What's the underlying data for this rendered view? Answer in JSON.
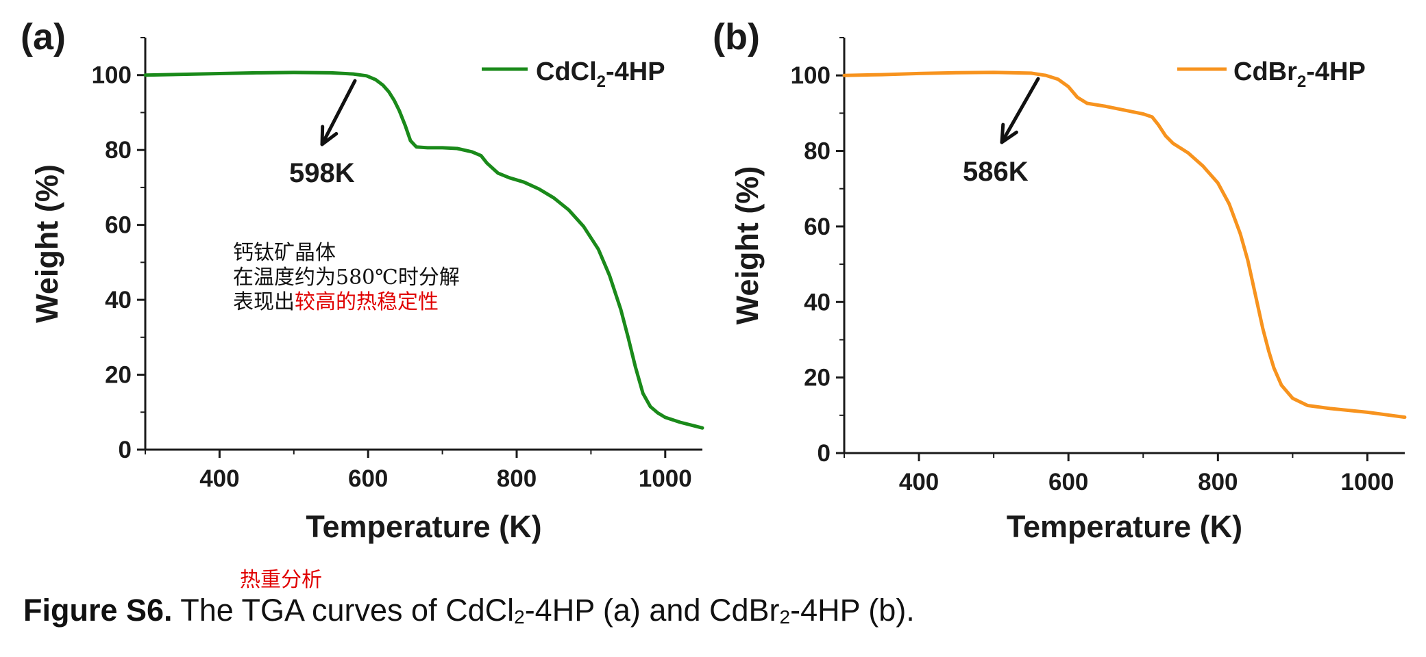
{
  "chart_data": [
    {
      "panel_label": "(a)",
      "type": "line",
      "xlabel": "Temperature (K)",
      "ylabel": "Weight (%)",
      "xlim": [
        300,
        1050
      ],
      "ylim": [
        0,
        110
      ],
      "xticks": [
        400,
        600,
        800,
        1000
      ],
      "yticks": [
        0,
        20,
        40,
        60,
        80,
        100
      ],
      "grid": false,
      "legend_position": "top-right",
      "series": [
        {
          "name_main": "CdCl",
          "name_sub": "2",
          "name_tail": "-4HP",
          "color": "#1a8a1a",
          "x": [
            300,
            350,
            400,
            450,
            500,
            550,
            580,
            598,
            610,
            620,
            628,
            635,
            642,
            650,
            657,
            665,
            680,
            700,
            720,
            740,
            752,
            760,
            775,
            790,
            810,
            830,
            850,
            870,
            890,
            910,
            925,
            940,
            950,
            960,
            970,
            980,
            990,
            1000,
            1020,
            1050
          ],
          "y": [
            100,
            100.2,
            100.4,
            100.6,
            100.7,
            100.6,
            100.3,
            99.8,
            98.8,
            97.3,
            95.5,
            93.3,
            90.5,
            86.5,
            82.5,
            80.8,
            80.6,
            80.6,
            80.4,
            79.5,
            78.5,
            76.5,
            73.8,
            72.6,
            71.4,
            69.6,
            67.2,
            64.0,
            59.6,
            53.5,
            46.5,
            37.5,
            30.0,
            22.0,
            15.0,
            11.5,
            9.8,
            8.6,
            7.3,
            5.8
          ]
        }
      ],
      "annotation": {
        "text": "598K",
        "x": 598,
        "y": 100
      },
      "note_lines": [
        "钙钛矿晶体",
        "在温度约为580℃时分解",
        "表现出"
      ],
      "note_red": "较高的热稳定性"
    },
    {
      "panel_label": "(b)",
      "type": "line",
      "xlabel": "Temperature (K)",
      "ylabel": "Weight (%)",
      "xlim": [
        300,
        1050
      ],
      "ylim": [
        0,
        110
      ],
      "xticks": [
        400,
        600,
        800,
        1000
      ],
      "yticks": [
        0,
        20,
        40,
        60,
        80,
        100
      ],
      "grid": false,
      "legend_position": "top-right",
      "series": [
        {
          "name_main": "CdBr",
          "name_sub": "2",
          "name_tail": "-4HP",
          "color": "#f7931e",
          "x": [
            300,
            350,
            400,
            450,
            500,
            550,
            570,
            586,
            600,
            612,
            625,
            650,
            680,
            700,
            712,
            720,
            730,
            740,
            760,
            780,
            800,
            815,
            830,
            840,
            850,
            860,
            868,
            875,
            885,
            900,
            920,
            950,
            1000,
            1050
          ],
          "y": [
            100,
            100.2,
            100.5,
            100.7,
            100.8,
            100.6,
            100.0,
            99.0,
            97.0,
            94.2,
            92.6,
            91.8,
            90.6,
            89.8,
            89.0,
            87.0,
            84.0,
            82.0,
            79.5,
            76.0,
            71.5,
            66.0,
            58.0,
            51.0,
            42.0,
            33.0,
            27.0,
            22.5,
            18.0,
            14.5,
            12.6,
            11.8,
            10.8,
            9.5
          ]
        }
      ],
      "annotation": {
        "text": "586K",
        "x": 586,
        "y": 100
      }
    }
  ],
  "caption": {
    "bold": "Figure S6.",
    "text_1": " The TGA curves of CdCl",
    "sub_1": "2",
    "text_2": "-4HP (a) and CdBr",
    "sub_2": "2",
    "text_3": "-4HP (b)."
  },
  "caption_note": "热重分析"
}
